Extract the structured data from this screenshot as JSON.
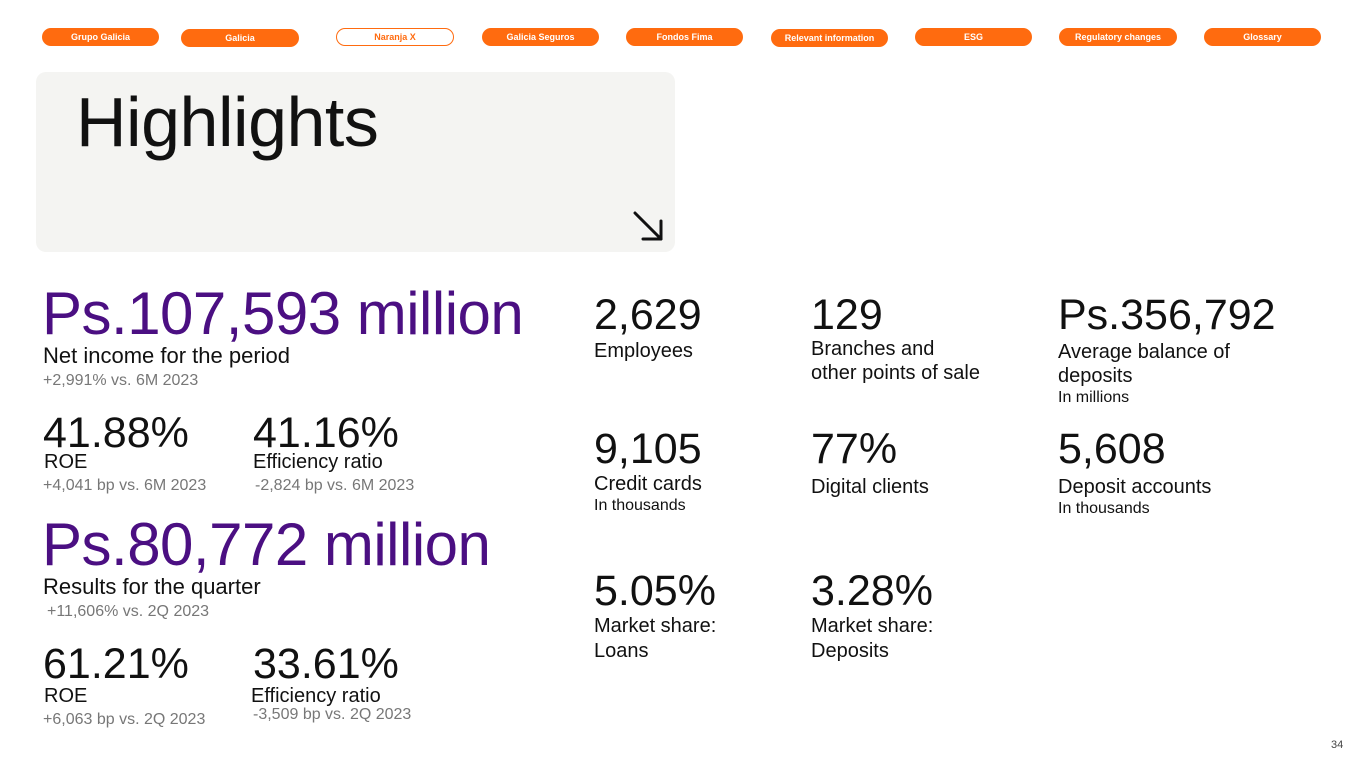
{
  "nav": {
    "items": [
      {
        "label": "Grupo Galicia"
      },
      {
        "label": "Galicia"
      },
      {
        "label": "Naranja X"
      },
      {
        "label": "Galicia Seguros"
      },
      {
        "label": "Fondos Fima"
      },
      {
        "label": "Relevant information"
      },
      {
        "label": "ESG"
      },
      {
        "label": "Regulatory changes"
      },
      {
        "label": "Glossary"
      }
    ],
    "active_item": "Naranja X"
  },
  "hero": {
    "title": "Highlights",
    "arrow_icon": "arrow-down-right-icon"
  },
  "period": {
    "net_income_value": "Ps.107,593 million",
    "net_income_label": "Net income for the period",
    "net_income_change": "+2,991% vs. 6M 2023",
    "roe_value": "41.88%",
    "roe_label": "ROE",
    "roe_change": "+4,041 bp vs. 6M 2023",
    "efficiency_value": "41.16%",
    "efficiency_label": "Efficiency ratio",
    "efficiency_change": "-2,824 bp vs. 6M 2023"
  },
  "quarter": {
    "results_value": "Ps.80,772 million",
    "results_label": "Results for the quarter",
    "results_change": "+11,606% vs. 2Q 2023",
    "roe_value": "61.21%",
    "roe_label": "ROE",
    "roe_change": "+6,063 bp vs. 2Q 2023",
    "efficiency_value": "33.61%",
    "efficiency_label": "Efficiency ratio",
    "efficiency_change": "-3,509 bp vs. 2Q 2023"
  },
  "kpis": {
    "employees": {
      "value": "2,629",
      "label": "Employees"
    },
    "branches": {
      "value": "129",
      "label_line1": "Branches and",
      "label_line2": "other points of sale"
    },
    "deposits_avg": {
      "value": "Ps.356,792",
      "label_line1": "Average balance of",
      "label_line2": "deposits",
      "unit": "In millions"
    },
    "credit_cards": {
      "value": "9,105",
      "label": "Credit cards",
      "unit": "In thousands"
    },
    "digital_clients": {
      "value": "77%",
      "label": "Digital clients"
    },
    "deposit_accounts": {
      "value": "5,608",
      "label": "Deposit accounts",
      "unit": "In thousands"
    },
    "share_loans": {
      "value": "5.05%",
      "label_line1": "Market share:",
      "label_line2": "Loans"
    },
    "share_deposits": {
      "value": "3.28%",
      "label_line1": "Market share:",
      "label_line2": "Deposits"
    }
  },
  "colors": {
    "accent": "#ff6b0f",
    "purple": "#4b0f82",
    "hero_bg": "#f4f4f2"
  },
  "page_number": "34"
}
